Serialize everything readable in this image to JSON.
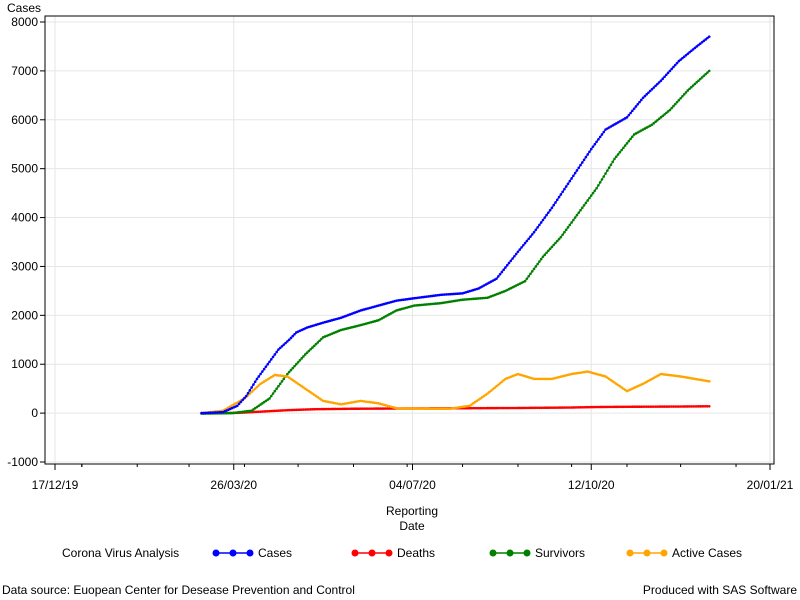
{
  "footnotes": {
    "left": "Data source: Euopean Center for Desease Prevention and Control",
    "right": "Produced with SAS Software"
  },
  "chart_data": {
    "type": "line",
    "ylabel": "Cases",
    "xlabel_lines": [
      "Reporting",
      "Date"
    ],
    "legend_title": "Corona Virus Analysis",
    "legend_position": "bottom",
    "grid": true,
    "ylim": [
      -1000,
      8000
    ],
    "yticks": [
      -1000,
      0,
      1000,
      2000,
      3000,
      4000,
      5000,
      6000,
      7000,
      8000
    ],
    "xlim": [
      "2019-12-17",
      "2021-01-20"
    ],
    "xticks": [
      "2019-12-17",
      "2020-03-26",
      "2020-07-04",
      "2020-10-12",
      "2021-01-20"
    ],
    "xtick_labels": [
      "17/12/19",
      "26/03/20",
      "04/07/20",
      "12/10/20",
      "20/01/21"
    ],
    "series": [
      {
        "name": "Cases",
        "color": "#0000ff",
        "points": [
          [
            "2020-03-08",
            0
          ],
          [
            "2020-03-20",
            20
          ],
          [
            "2020-03-28",
            150
          ],
          [
            "2020-04-02",
            350
          ],
          [
            "2020-04-08",
            700
          ],
          [
            "2020-04-14",
            1000
          ],
          [
            "2020-04-20",
            1300
          ],
          [
            "2020-04-26",
            1500
          ],
          [
            "2020-04-30",
            1650
          ],
          [
            "2020-05-06",
            1750
          ],
          [
            "2020-05-15",
            1850
          ],
          [
            "2020-05-25",
            1950
          ],
          [
            "2020-06-05",
            2100
          ],
          [
            "2020-06-15",
            2200
          ],
          [
            "2020-06-25",
            2300
          ],
          [
            "2020-07-05",
            2350
          ],
          [
            "2020-07-20",
            2420
          ],
          [
            "2020-08-01",
            2450
          ],
          [
            "2020-08-10",
            2550
          ],
          [
            "2020-08-20",
            2750
          ],
          [
            "2020-09-01",
            3300
          ],
          [
            "2020-09-10",
            3700
          ],
          [
            "2020-09-20",
            4200
          ],
          [
            "2020-10-01",
            4800
          ],
          [
            "2020-10-12",
            5400
          ],
          [
            "2020-10-20",
            5800
          ],
          [
            "2020-11-01",
            6050
          ],
          [
            "2020-11-10",
            6450
          ],
          [
            "2020-11-20",
            6800
          ],
          [
            "2020-11-30",
            7200
          ],
          [
            "2020-12-10",
            7500
          ],
          [
            "2020-12-17",
            7700
          ]
        ]
      },
      {
        "name": "Deaths",
        "color": "#ff0000",
        "points": [
          [
            "2020-03-08",
            0
          ],
          [
            "2020-03-28",
            5
          ],
          [
            "2020-04-10",
            30
          ],
          [
            "2020-04-25",
            60
          ],
          [
            "2020-05-10",
            80
          ],
          [
            "2020-06-01",
            90
          ],
          [
            "2020-07-01",
            95
          ],
          [
            "2020-08-01",
            100
          ],
          [
            "2020-09-01",
            105
          ],
          [
            "2020-10-01",
            115
          ],
          [
            "2020-10-15",
            125
          ],
          [
            "2020-11-01",
            130
          ],
          [
            "2020-12-01",
            135
          ],
          [
            "2020-12-17",
            140
          ]
        ]
      },
      {
        "name": "Survivors",
        "color": "#008000",
        "points": [
          [
            "2020-03-08",
            -10
          ],
          [
            "2020-03-25",
            0
          ],
          [
            "2020-04-05",
            50
          ],
          [
            "2020-04-15",
            300
          ],
          [
            "2020-04-25",
            800
          ],
          [
            "2020-05-05",
            1200
          ],
          [
            "2020-05-15",
            1550
          ],
          [
            "2020-05-25",
            1700
          ],
          [
            "2020-06-05",
            1800
          ],
          [
            "2020-06-15",
            1900
          ],
          [
            "2020-06-25",
            2100
          ],
          [
            "2020-07-05",
            2200
          ],
          [
            "2020-07-20",
            2250
          ],
          [
            "2020-08-01",
            2320
          ],
          [
            "2020-08-15",
            2360
          ],
          [
            "2020-08-25",
            2500
          ],
          [
            "2020-09-05",
            2700
          ],
          [
            "2020-09-15",
            3200
          ],
          [
            "2020-09-25",
            3600
          ],
          [
            "2020-10-05",
            4100
          ],
          [
            "2020-10-15",
            4600
          ],
          [
            "2020-10-25",
            5200
          ],
          [
            "2020-11-05",
            5700
          ],
          [
            "2020-11-15",
            5900
          ],
          [
            "2020-11-25",
            6200
          ],
          [
            "2020-12-05",
            6600
          ],
          [
            "2020-12-17",
            7000
          ]
        ]
      },
      {
        "name": "Active Cases",
        "color": "#ffa500",
        "points": [
          [
            "2020-03-08",
            0
          ],
          [
            "2020-03-20",
            50
          ],
          [
            "2020-04-01",
            300
          ],
          [
            "2020-04-10",
            600
          ],
          [
            "2020-04-18",
            780
          ],
          [
            "2020-04-25",
            750
          ],
          [
            "2020-05-05",
            500
          ],
          [
            "2020-05-15",
            250
          ],
          [
            "2020-05-25",
            180
          ],
          [
            "2020-06-05",
            250
          ],
          [
            "2020-06-15",
            200
          ],
          [
            "2020-06-25",
            100
          ],
          [
            "2020-07-10",
            90
          ],
          [
            "2020-07-25",
            90
          ],
          [
            "2020-08-05",
            150
          ],
          [
            "2020-08-15",
            400
          ],
          [
            "2020-08-25",
            700
          ],
          [
            "2020-09-01",
            800
          ],
          [
            "2020-09-10",
            700
          ],
          [
            "2020-09-20",
            700
          ],
          [
            "2020-10-01",
            800
          ],
          [
            "2020-10-10",
            850
          ],
          [
            "2020-10-20",
            750
          ],
          [
            "2020-11-01",
            450
          ],
          [
            "2020-11-10",
            600
          ],
          [
            "2020-11-20",
            800
          ],
          [
            "2020-12-01",
            750
          ],
          [
            "2020-12-17",
            650
          ]
        ]
      }
    ]
  }
}
